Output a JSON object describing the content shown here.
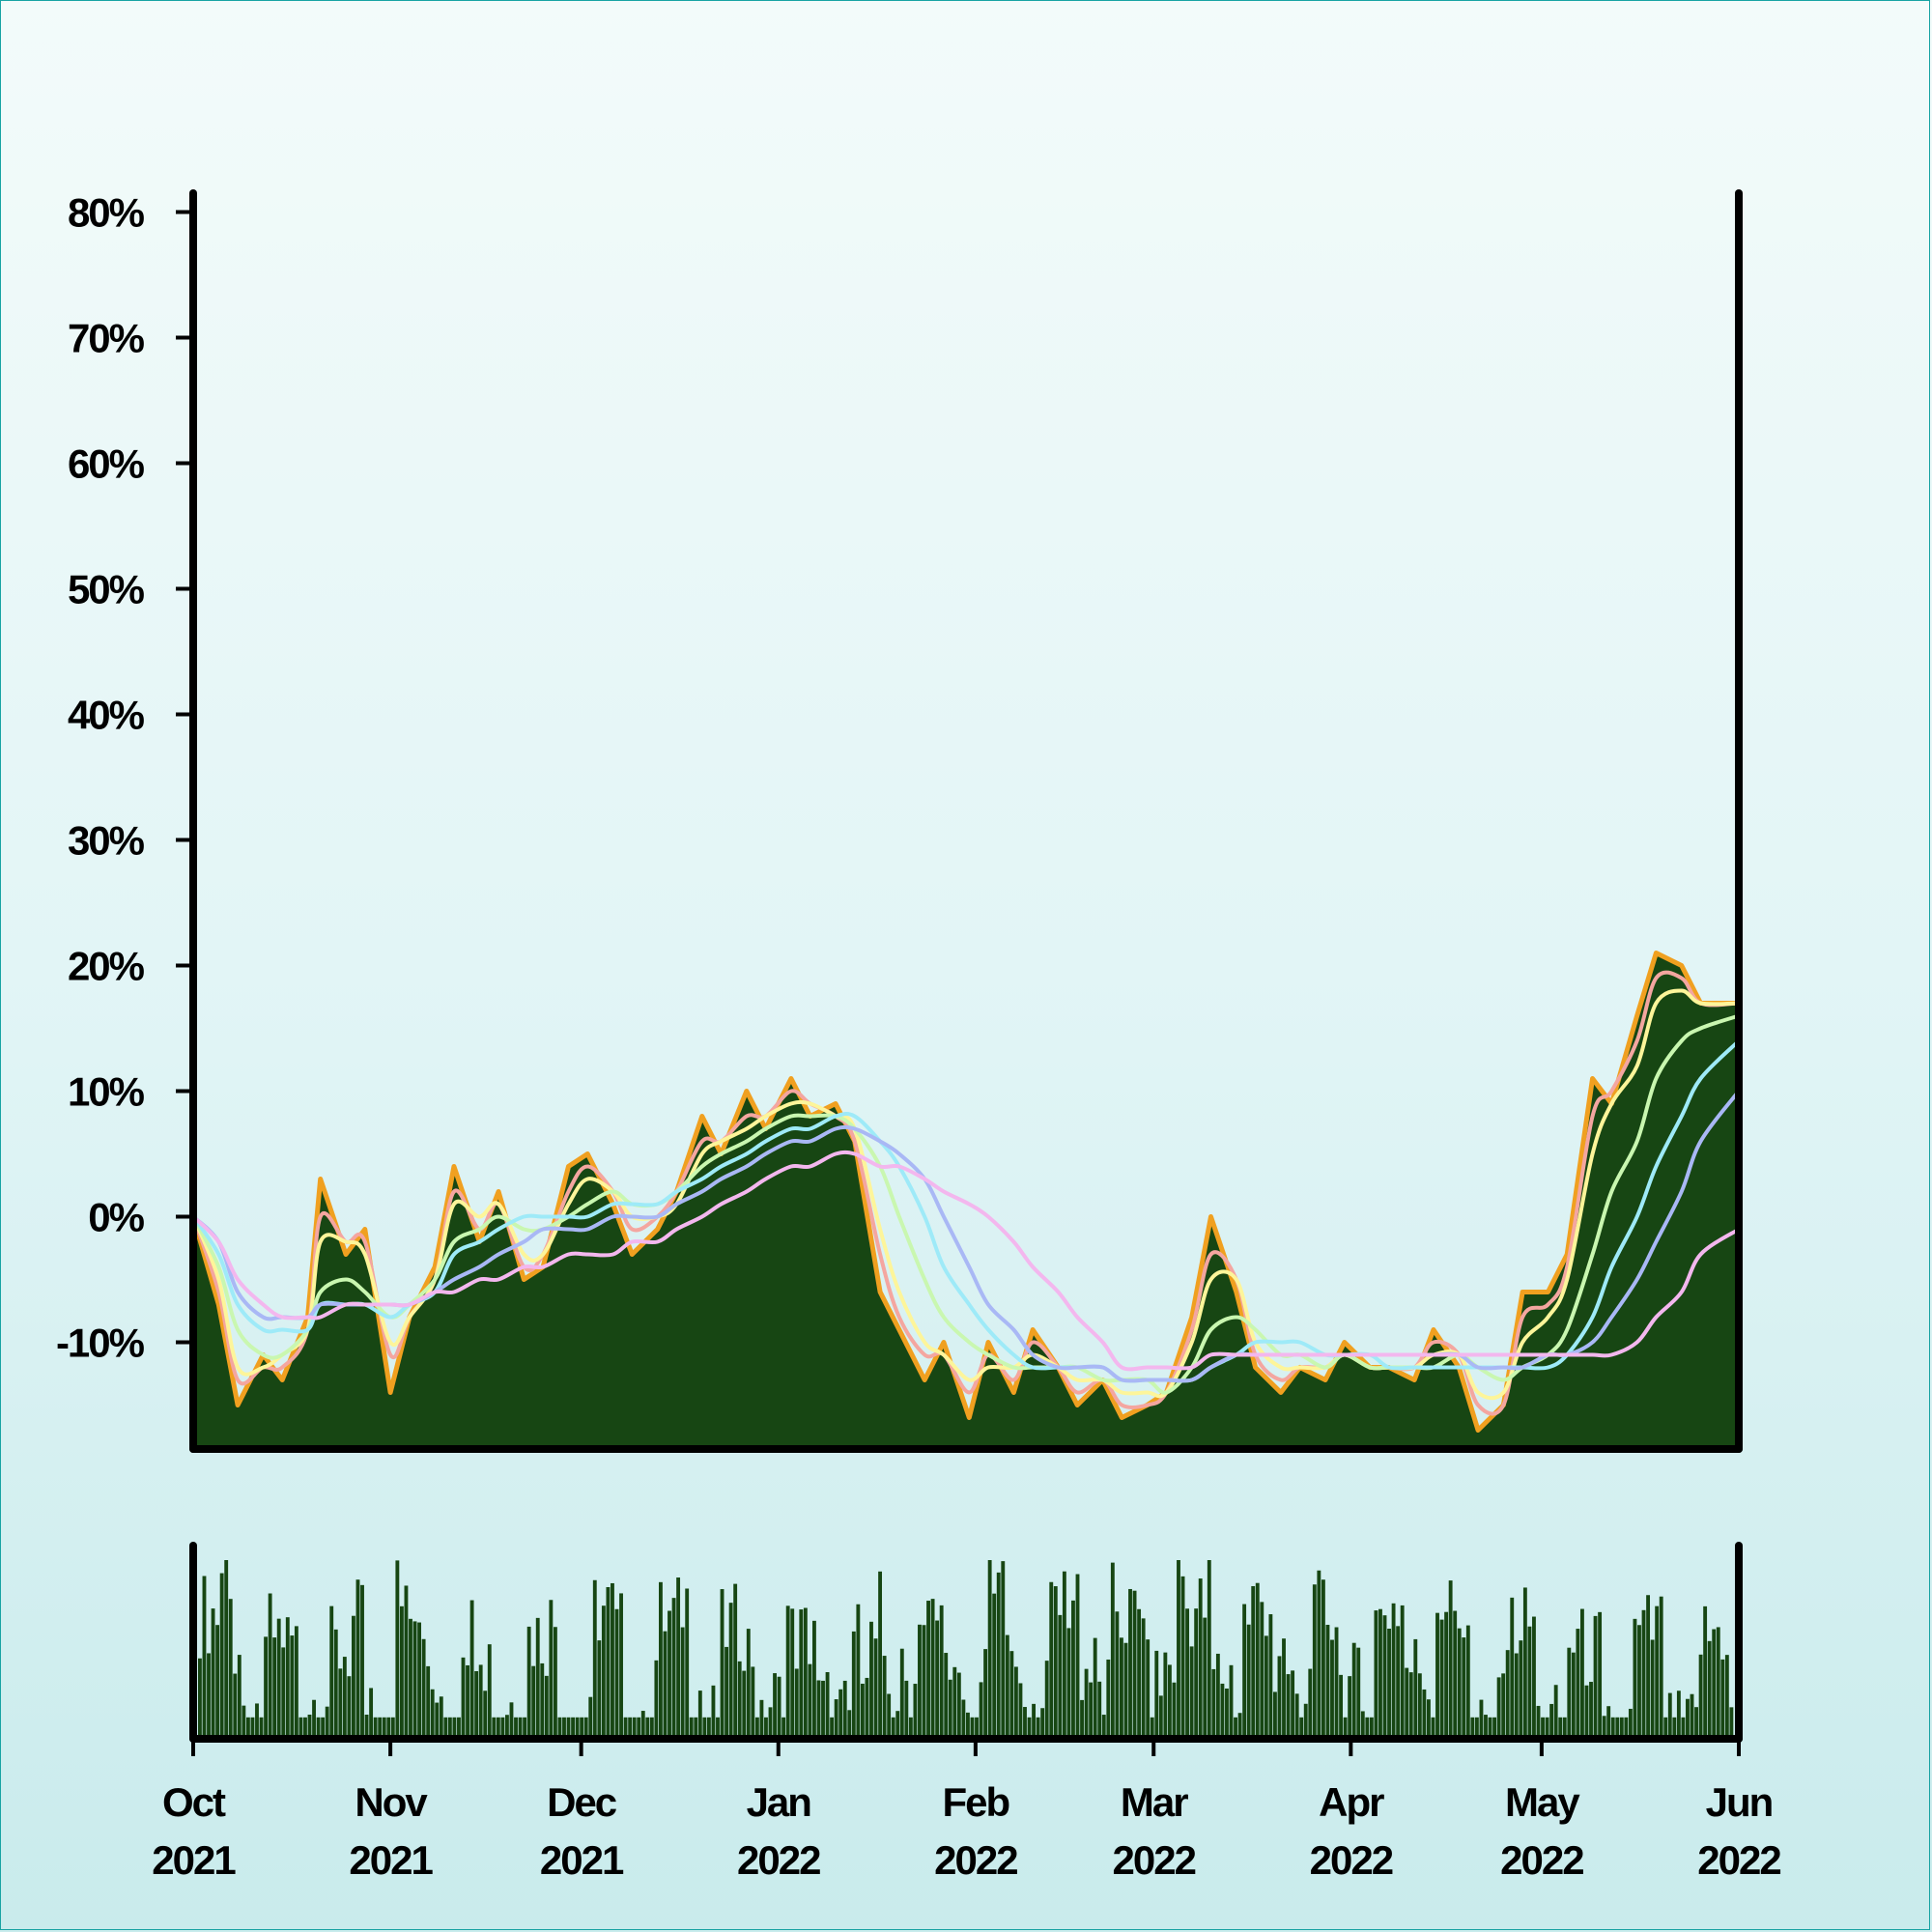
{
  "colors": {
    "price_area": "#174613",
    "price_line": "#f0a020",
    "volume": "#174613",
    "axis": "#000000",
    "ma_lines": [
      "#f4a6a0",
      "#fdf59a",
      "#c9f7b0",
      "#9eeaf8",
      "#a9b8f5",
      "#f3b7ee"
    ]
  },
  "chart_data": [
    {
      "type": "area",
      "y_tick_labels": [
        "-10%",
        "0%",
        "10%",
        "20%",
        "30%",
        "40%",
        "50%",
        "60%",
        "70%",
        "80%"
      ],
      "y_ticks": [
        -10,
        0,
        10,
        20,
        30,
        40,
        50,
        60,
        70,
        80
      ],
      "ylim": [
        -18.5,
        81.5
      ],
      "x_range": [
        "2021-10-01",
        "2022-06-01"
      ],
      "grid": false,
      "price_series": {
        "x": [
          "2021-10-01",
          "2021-10-05",
          "2021-10-08",
          "2021-10-12",
          "2021-10-15",
          "2021-10-19",
          "2021-10-21",
          "2021-10-25",
          "2021-10-28",
          "2021-11-01",
          "2021-11-04",
          "2021-11-08",
          "2021-11-11",
          "2021-11-15",
          "2021-11-18",
          "2021-11-22",
          "2021-11-25",
          "2021-11-29",
          "2021-12-02",
          "2021-12-06",
          "2021-12-09",
          "2021-12-13",
          "2021-12-16",
          "2021-12-20",
          "2021-12-23",
          "2021-12-27",
          "2021-12-30",
          "2022-01-03",
          "2022-01-06",
          "2022-01-10",
          "2022-01-13",
          "2022-01-17",
          "2022-01-20",
          "2022-01-24",
          "2022-01-27",
          "2022-01-31",
          "2022-02-03",
          "2022-02-07",
          "2022-02-10",
          "2022-02-14",
          "2022-02-17",
          "2022-02-21",
          "2022-02-24",
          "2022-02-28",
          "2022-03-03",
          "2022-03-07",
          "2022-03-10",
          "2022-03-14",
          "2022-03-17",
          "2022-03-21",
          "2022-03-24",
          "2022-03-28",
          "2022-03-31",
          "2022-04-04",
          "2022-04-07",
          "2022-04-11",
          "2022-04-14",
          "2022-04-18",
          "2022-04-21",
          "2022-04-25",
          "2022-04-28",
          "2022-05-02",
          "2022-05-05",
          "2022-05-09",
          "2022-05-12",
          "2022-05-16",
          "2022-05-19",
          "2022-05-23",
          "2022-05-26",
          "2022-06-01"
        ],
        "values": [
          0,
          -7,
          -15,
          -11,
          -13,
          -8,
          3,
          -3,
          -1,
          -14,
          -8,
          -4,
          4,
          -2,
          2,
          -5,
          -4,
          4,
          5,
          1,
          -3,
          -1,
          2,
          8,
          5,
          10,
          7,
          11,
          8,
          9,
          6,
          -6,
          -9,
          -13,
          -10,
          -16,
          -10,
          -14,
          -9,
          -12,
          -15,
          -13,
          -16,
          -15,
          -14,
          -8,
          0,
          -6,
          -12,
          -14,
          -12,
          -13,
          -10,
          -12,
          -12,
          -13,
          -9,
          -12,
          -17,
          -15,
          -6,
          -6,
          -3,
          11,
          9,
          16,
          21,
          20,
          17,
          17
        ]
      },
      "moving_averages": [
        {
          "values": [
            0,
            -6,
            -13,
            -12,
            -12,
            -9,
            0,
            -2,
            -2,
            -11,
            -8,
            -5,
            2,
            -1,
            1,
            -4,
            -3,
            2,
            4,
            2,
            -1,
            0,
            2,
            6,
            6,
            8,
            8,
            10,
            9,
            8,
            6,
            -3,
            -8,
            -11,
            -11,
            -14,
            -11,
            -13,
            -10,
            -12,
            -14,
            -13,
            -15,
            -15,
            -14,
            -9,
            -3,
            -5,
            -11,
            -13,
            -12,
            -12,
            -11,
            -12,
            -12,
            -12,
            -10,
            -11,
            -15,
            -15,
            -8,
            -7,
            -4,
            8,
            10,
            14,
            19,
            19,
            17,
            17
          ]
        },
        {
          "values": [
            0,
            -5,
            -12,
            -12,
            -11,
            -9,
            -2,
            -2,
            -3,
            -10,
            -8,
            -5,
            1,
            0,
            1,
            -3,
            -3,
            1,
            3,
            2,
            0,
            0,
            1,
            5,
            6,
            7,
            8,
            9,
            9,
            8,
            7,
            -1,
            -6,
            -10,
            -11,
            -13,
            -12,
            -12,
            -11,
            -12,
            -13,
            -13,
            -14,
            -14,
            -14,
            -10,
            -5,
            -5,
            -10,
            -12,
            -12,
            -12,
            -11,
            -12,
            -12,
            -12,
            -11,
            -11,
            -14,
            -14,
            -10,
            -8,
            -5,
            5,
            9,
            12,
            17,
            18,
            17,
            17
          ]
        },
        {
          "values": [
            0,
            -4,
            -9,
            -11,
            -11,
            -9,
            -6,
            -5,
            -6,
            -8,
            -7,
            -5,
            -2,
            -1,
            0,
            -1,
            -1,
            0,
            1,
            2,
            1,
            1,
            2,
            4,
            5,
            6,
            7,
            8,
            8,
            8,
            7,
            4,
            0,
            -5,
            -8,
            -10,
            -11,
            -12,
            -12,
            -12,
            -12,
            -13,
            -13,
            -13,
            -14,
            -12,
            -9,
            -8,
            -9,
            -11,
            -11,
            -12,
            -11,
            -12,
            -12,
            -12,
            -12,
            -11,
            -12,
            -13,
            -12,
            -11,
            -9,
            -3,
            2,
            6,
            11,
            14,
            15,
            16
          ]
        },
        {
          "values": [
            0,
            -3,
            -7,
            -9,
            -9,
            -9,
            -7,
            -7,
            -7,
            -8,
            -7,
            -6,
            -3,
            -2,
            -1,
            0,
            0,
            0,
            0,
            1,
            1,
            1,
            2,
            3,
            4,
            5,
            6,
            7,
            7,
            8,
            8,
            6,
            4,
            0,
            -4,
            -7,
            -9,
            -11,
            -12,
            -12,
            -12,
            -12,
            -13,
            -13,
            -13,
            -13,
            -12,
            -11,
            -10,
            -10,
            -10,
            -11,
            -11,
            -11,
            -12,
            -12,
            -12,
            -12,
            -12,
            -12,
            -12,
            -12,
            -11,
            -8,
            -4,
            0,
            4,
            8,
            11,
            14
          ]
        },
        {
          "values": [
            0,
            -2,
            -6,
            -8,
            -8,
            -8,
            -7,
            -7,
            -7,
            -7,
            -7,
            -6,
            -5,
            -4,
            -3,
            -2,
            -1,
            -1,
            -1,
            0,
            0,
            0,
            1,
            2,
            3,
            4,
            5,
            6,
            6,
            7,
            7,
            6,
            5,
            3,
            0,
            -4,
            -7,
            -9,
            -11,
            -12,
            -12,
            -12,
            -13,
            -13,
            -13,
            -13,
            -12,
            -11,
            -11,
            -11,
            -11,
            -11,
            -11,
            -11,
            -11,
            -11,
            -11,
            -11,
            -12,
            -12,
            -12,
            -11,
            -11,
            -10,
            -8,
            -5,
            -2,
            2,
            6,
            10
          ]
        },
        {
          "values": [
            0,
            -2,
            -5,
            -7,
            -8,
            -8,
            -8,
            -7,
            -7,
            -7,
            -7,
            -6,
            -6,
            -5,
            -5,
            -4,
            -4,
            -3,
            -3,
            -3,
            -2,
            -2,
            -1,
            0,
            1,
            2,
            3,
            4,
            4,
            5,
            5,
            4,
            4,
            3,
            2,
            1,
            0,
            -2,
            -4,
            -6,
            -8,
            -10,
            -12,
            -12,
            -12,
            -12,
            -11,
            -11,
            -11,
            -11,
            -11,
            -11,
            -11,
            -11,
            -11,
            -11,
            -11,
            -11,
            -11,
            -11,
            -11,
            -11,
            -11,
            -11,
            -11,
            -10,
            -8,
            -6,
            -3,
            -1
          ]
        }
      ]
    },
    {
      "type": "bar",
      "title": "",
      "x_tick_labels": [
        {
          "month": "Oct",
          "year": "2021"
        },
        {
          "month": "Nov",
          "year": "2021"
        },
        {
          "month": "Dec",
          "year": "2021"
        },
        {
          "month": "Jan",
          "year": "2022"
        },
        {
          "month": "Feb",
          "year": "2022"
        },
        {
          "month": "Mar",
          "year": "2022"
        },
        {
          "month": "Apr",
          "year": "2022"
        },
        {
          "month": "May",
          "year": "2022"
        },
        {
          "month": "Jun",
          "year": "2022"
        }
      ],
      "x_ticks": [
        "2021-10-01",
        "2021-11-01",
        "2021-12-01",
        "2022-01-01",
        "2022-02-01",
        "2022-03-01",
        "2022-04-01",
        "2022-05-01",
        "2022-06-01"
      ],
      "volume_relative": [
        0.7,
        0.95,
        0.45,
        0.6,
        0.55,
        0.72,
        0.5,
        0.65,
        0.4,
        0.85,
        0.75,
        0.55,
        0.62,
        0.48,
        0.7,
        0.58,
        0.66,
        0.52,
        0.73,
        0.6,
        0.44,
        0.68,
        0.77,
        0.59,
        0.63,
        0.5,
        0.71,
        0.57,
        0.69,
        0.61,
        0.55,
        0.74,
        0.8,
        0.66,
        0.72,
        0.58,
        0.83,
        0.7,
        0.64,
        0.79,
        0.88,
        0.75,
        0.68,
        0.81,
        0.92,
        0.73,
        0.86,
        0.69,
        0.77,
        0.84,
        0.62,
        0.71,
        0.8,
        0.66,
        0.74,
        0.9,
        0.78,
        0.7,
        0.52,
        0.6,
        0.65,
        0.58,
        0.55,
        0.5,
        0.47,
        0.56,
        0.61,
        0.53,
        0.57,
        0.6
      ]
    }
  ]
}
